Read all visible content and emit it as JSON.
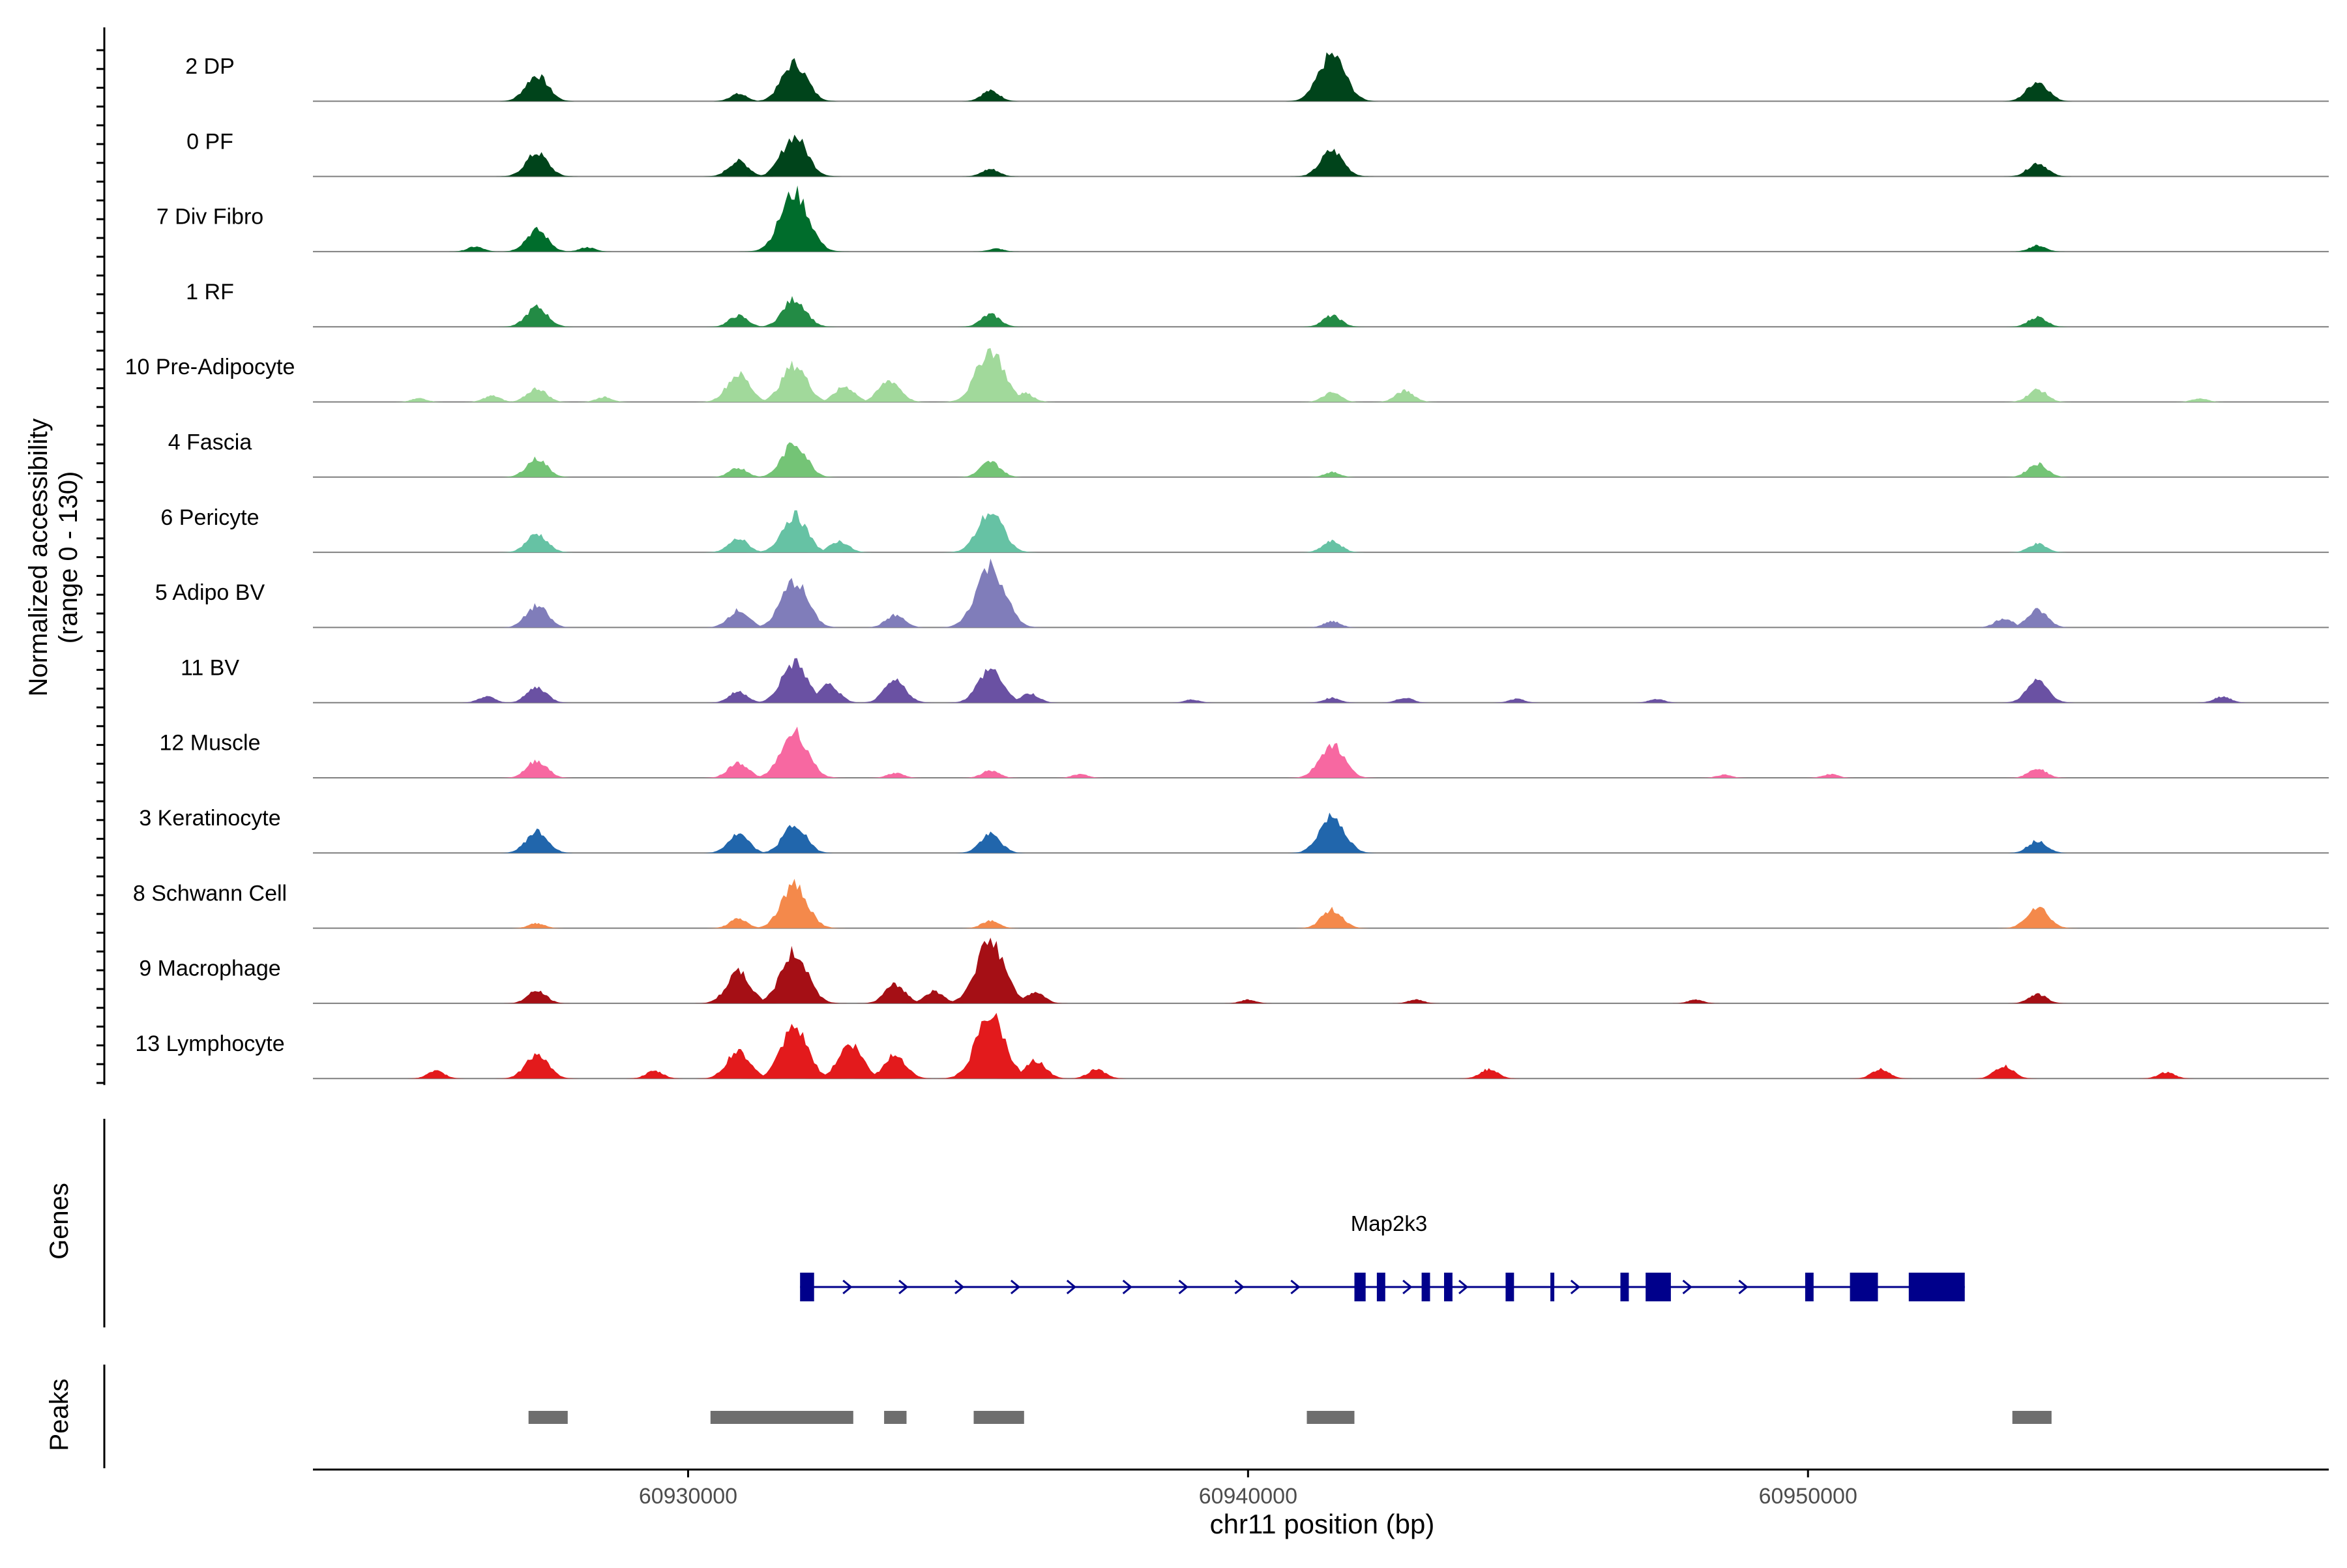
{
  "chart_data": {
    "type": "area",
    "title": "",
    "chromosome": "chr11",
    "xlabel": "chr11 position (bp)",
    "ylabel_line1": "Normalized accessibility",
    "ylabel_line2": "(range 0 - 130)",
    "y_range": [
      0,
      130
    ],
    "x_range": [
      60923300,
      60959300
    ],
    "x_ticks": [
      60930000,
      60940000,
      60950000
    ],
    "x_tick_labels": [
      "60930000",
      "60940000",
      "60950000"
    ],
    "panel_labels": {
      "genes": "Genes",
      "peaks": "Peaks"
    },
    "tracks": [
      {
        "name": "2 DP",
        "color": "#00441b",
        "peaks": [
          [
            60927300,
            0.42
          ],
          [
            60930900,
            0.12
          ],
          [
            60931900,
            0.62
          ],
          [
            60935400,
            0.17
          ],
          [
            60941500,
            0.75
          ],
          [
            60954100,
            0.32
          ]
        ]
      },
      {
        "name": "0 PF",
        "color": "#00441b",
        "peaks": [
          [
            60927300,
            0.38
          ],
          [
            60930900,
            0.25
          ],
          [
            60931900,
            0.65
          ],
          [
            60935400,
            0.12
          ],
          [
            60941500,
            0.42
          ],
          [
            60954100,
            0.22
          ]
        ]
      },
      {
        "name": "7 Div Fibro",
        "color": "#006d2c",
        "peaks": [
          [
            60926200,
            0.08
          ],
          [
            60927300,
            0.35
          ],
          [
            60928200,
            0.07
          ],
          [
            60931900,
            0.95
          ],
          [
            60935500,
            0.05
          ],
          [
            60954100,
            0.1
          ]
        ]
      },
      {
        "name": "1 RF",
        "color": "#238b45",
        "peaks": [
          [
            60927300,
            0.32
          ],
          [
            60930900,
            0.18
          ],
          [
            60931900,
            0.45
          ],
          [
            60935400,
            0.2
          ],
          [
            60941500,
            0.18
          ],
          [
            60954100,
            0.16
          ]
        ]
      },
      {
        "name": "10 Pre-Adipocyte",
        "color": "#a1d99b",
        "peaks": [
          [
            60925200,
            0.06
          ],
          [
            60926500,
            0.1
          ],
          [
            60927300,
            0.22
          ],
          [
            60928500,
            0.08
          ],
          [
            60930900,
            0.45
          ],
          [
            60931900,
            0.6
          ],
          [
            60932800,
            0.25
          ],
          [
            60933600,
            0.35
          ],
          [
            60935400,
            0.85
          ],
          [
            60936000,
            0.15
          ],
          [
            60941500,
            0.15
          ],
          [
            60942800,
            0.18
          ],
          [
            60954100,
            0.2
          ],
          [
            60957000,
            0.06
          ]
        ]
      },
      {
        "name": "4 Fascia",
        "color": "#74c476",
        "peaks": [
          [
            60927300,
            0.3
          ],
          [
            60930900,
            0.15
          ],
          [
            60931900,
            0.55
          ],
          [
            60935400,
            0.25
          ],
          [
            60941500,
            0.08
          ],
          [
            60954100,
            0.22
          ]
        ]
      },
      {
        "name": "6 Pericyte",
        "color": "#66c2a4",
        "peaks": [
          [
            60927300,
            0.3
          ],
          [
            60930900,
            0.22
          ],
          [
            60931900,
            0.6
          ],
          [
            60932700,
            0.18
          ],
          [
            60935400,
            0.65
          ],
          [
            60941500,
            0.18
          ],
          [
            60954100,
            0.14
          ]
        ]
      },
      {
        "name": "5 Adipo BV",
        "color": "#807dba",
        "peaks": [
          [
            60927300,
            0.35
          ],
          [
            60930900,
            0.28
          ],
          [
            60931900,
            0.75
          ],
          [
            60933700,
            0.2
          ],
          [
            60935400,
            1.0
          ],
          [
            60941500,
            0.1
          ],
          [
            60953500,
            0.15
          ],
          [
            60954100,
            0.28
          ]
        ]
      },
      {
        "name": "11 BV",
        "color": "#6a51a3",
        "peaks": [
          [
            60926400,
            0.1
          ],
          [
            60927300,
            0.25
          ],
          [
            60930900,
            0.18
          ],
          [
            60931900,
            0.65
          ],
          [
            60932500,
            0.3
          ],
          [
            60933700,
            0.35
          ],
          [
            60935400,
            0.55
          ],
          [
            60936100,
            0.15
          ],
          [
            60939000,
            0.05
          ],
          [
            60941500,
            0.08
          ],
          [
            60942800,
            0.08
          ],
          [
            60944800,
            0.06
          ],
          [
            60947300,
            0.06
          ],
          [
            60954100,
            0.35
          ],
          [
            60957400,
            0.1
          ]
        ]
      },
      {
        "name": "12 Muscle",
        "color": "#f768a1",
        "peaks": [
          [
            60927300,
            0.28
          ],
          [
            60930900,
            0.25
          ],
          [
            60931900,
            0.75
          ],
          [
            60933700,
            0.08
          ],
          [
            60935400,
            0.12
          ],
          [
            60937000,
            0.06
          ],
          [
            60941500,
            0.55
          ],
          [
            60948500,
            0.05
          ],
          [
            60950400,
            0.06
          ],
          [
            60954100,
            0.15
          ]
        ]
      },
      {
        "name": "3 Keratinocyte",
        "color": "#2166ac",
        "peaks": [
          [
            60927300,
            0.35
          ],
          [
            60930900,
            0.3
          ],
          [
            60931900,
            0.45
          ],
          [
            60935400,
            0.3
          ],
          [
            60941500,
            0.6
          ],
          [
            60954100,
            0.2
          ]
        ]
      },
      {
        "name": "8 Schwann Cell",
        "color": "#f4894b",
        "peaks": [
          [
            60927300,
            0.08
          ],
          [
            60930900,
            0.15
          ],
          [
            60931900,
            0.7
          ],
          [
            60935400,
            0.12
          ],
          [
            60941500,
            0.3
          ],
          [
            60954100,
            0.35
          ]
        ]
      },
      {
        "name": "9 Macrophage",
        "color": "#a50f15",
        "peaks": [
          [
            60927300,
            0.2
          ],
          [
            60930900,
            0.5
          ],
          [
            60931900,
            0.82
          ],
          [
            60933700,
            0.3
          ],
          [
            60934400,
            0.2
          ],
          [
            60935400,
            1.0
          ],
          [
            60936200,
            0.18
          ],
          [
            60940000,
            0.06
          ],
          [
            60943000,
            0.06
          ],
          [
            60948000,
            0.06
          ],
          [
            60954100,
            0.15
          ]
        ]
      },
      {
        "name": "13 Lymphocyte",
        "color": "#e31a1c",
        "peaks": [
          [
            60925500,
            0.12
          ],
          [
            60927300,
            0.4
          ],
          [
            60929400,
            0.12
          ],
          [
            60930900,
            0.45
          ],
          [
            60931900,
            0.8
          ],
          [
            60932900,
            0.55
          ],
          [
            60933700,
            0.38
          ],
          [
            60935400,
            1.0
          ],
          [
            60936200,
            0.3
          ],
          [
            60937300,
            0.15
          ],
          [
            60944300,
            0.15
          ],
          [
            60951300,
            0.15
          ],
          [
            60953500,
            0.2
          ],
          [
            60956400,
            0.1
          ]
        ]
      }
    ],
    "gene": {
      "name": "Map2k3",
      "color": "#00008b",
      "strand": "+",
      "start": 60932000,
      "end": 60952800,
      "exons": [
        [
          60932000,
          60932250
        ],
        [
          60941900,
          60942100
        ],
        [
          60942300,
          60942450
        ],
        [
          60943100,
          60943250
        ],
        [
          60943500,
          60943650
        ],
        [
          60944600,
          60944750
        ],
        [
          60945400,
          60945450
        ],
        [
          60946650,
          60946800
        ],
        [
          60947100,
          60947550
        ],
        [
          60949950,
          60950100
        ],
        [
          60950750,
          60951250
        ],
        [
          60951800,
          60952800
        ]
      ]
    },
    "peaks_track": {
      "color": "#6e6e6e",
      "regions": [
        [
          60927150,
          60927850
        ],
        [
          60930400,
          60932950
        ],
        [
          60933500,
          60933900
        ],
        [
          60935100,
          60936000
        ],
        [
          60941050,
          60941900
        ],
        [
          60953650,
          60954350
        ]
      ]
    }
  }
}
